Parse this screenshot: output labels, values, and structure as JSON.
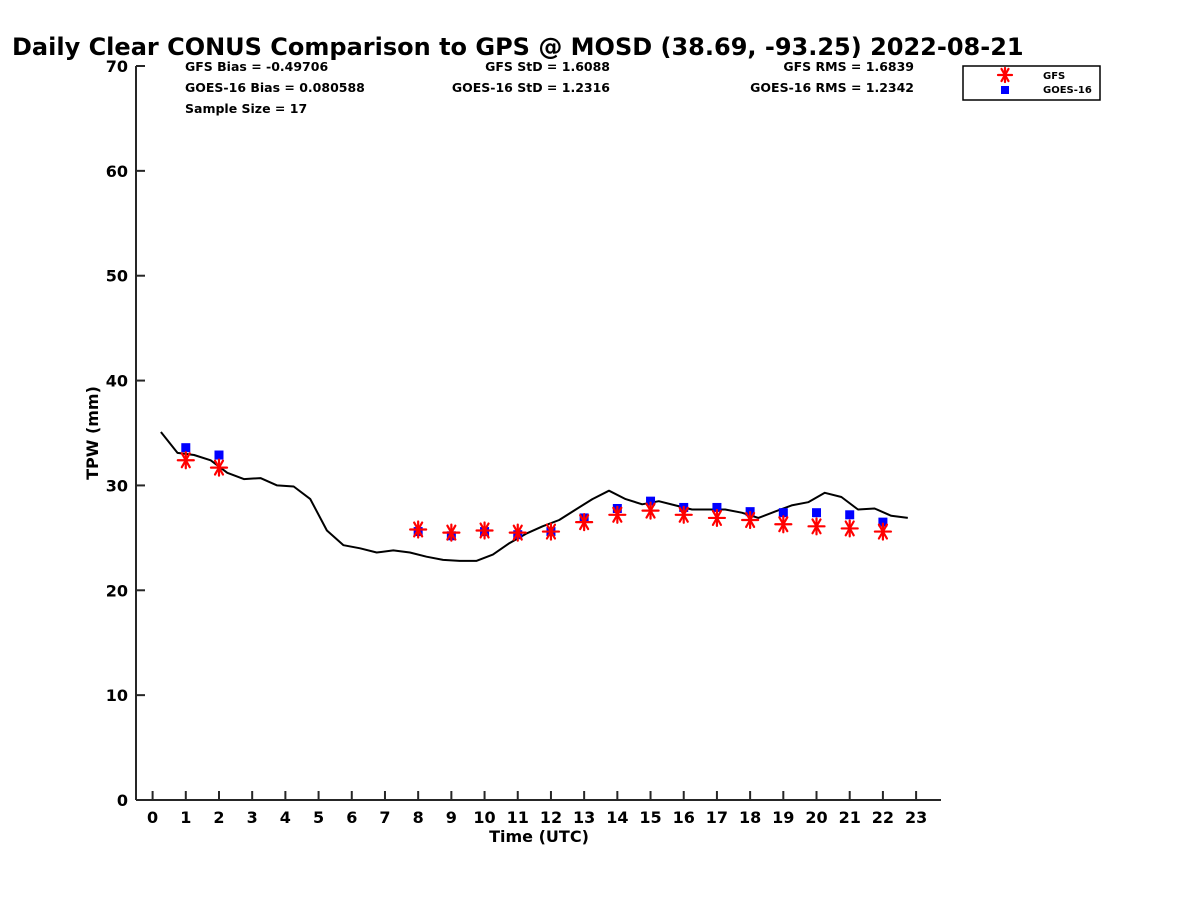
{
  "chart_data": {
    "type": "line+scatter",
    "title": "Daily Clear CONUS Comparison to GPS @ MOSD (38.69, -93.25) 2022-08-21",
    "xlabel": "Time (UTC)",
    "ylabel": "TPW (mm)",
    "xlim": [
      -0.5,
      23.75
    ],
    "ylim": [
      0,
      70
    ],
    "xticks": [
      0,
      1,
      2,
      3,
      4,
      5,
      6,
      7,
      8,
      9,
      10,
      11,
      12,
      13,
      14,
      15,
      16,
      17,
      18,
      19,
      20,
      21,
      22,
      23
    ],
    "yticks": [
      0,
      10,
      20,
      30,
      40,
      50,
      60,
      70
    ],
    "stats": {
      "gfs_bias": "GFS Bias = -0.49706",
      "goes_bias": "GOES-16 Bias = 0.080588",
      "sample_size": "Sample Size = 17",
      "gfs_std": "GFS StD = 1.6088",
      "goes_std": "GOES-16 StD = 1.2316",
      "gfs_rms": "GFS RMS = 1.6839",
      "goes_rms": "GOES-16 RMS = 1.2342"
    },
    "legend": {
      "position": "top-right",
      "entries": [
        "GFS",
        "GOES-16"
      ]
    },
    "colors": {
      "gfs": "#ff0000",
      "goes": "#0000ff",
      "gps": "#000000"
    },
    "series": [
      {
        "name": "GPS",
        "style": "line",
        "x": [
          0.25,
          0.75,
          1.25,
          1.75,
          2.25,
          2.75,
          3.25,
          3.75,
          4.25,
          4.75,
          5.25,
          5.75,
          6.25,
          6.75,
          7.25,
          7.75,
          8.25,
          8.75,
          9.25,
          9.75,
          10.25,
          10.75,
          11.25,
          11.75,
          12.25,
          12.75,
          13.25,
          13.75,
          14.25,
          14.75,
          15.25,
          15.75,
          16.25,
          16.75,
          17.25,
          17.75,
          18.25,
          18.75,
          19.25,
          19.75,
          20.25,
          20.75,
          21.25,
          21.75,
          22.25,
          22.75
        ],
        "y": [
          35.1,
          33.1,
          32.9,
          32.4,
          31.2,
          30.6,
          30.7,
          30.0,
          29.9,
          28.7,
          25.7,
          24.3,
          24.0,
          23.6,
          23.8,
          23.6,
          23.2,
          22.9,
          22.8,
          22.8,
          23.4,
          24.5,
          25.4,
          26.1,
          26.7,
          27.7,
          28.7,
          29.5,
          28.7,
          28.2,
          28.5,
          28.1,
          27.7,
          27.7,
          27.7,
          27.4,
          26.9,
          27.5,
          28.1,
          28.4,
          29.3,
          28.9,
          27.7,
          27.8,
          27.1,
          26.9
        ]
      },
      {
        "name": "GFS",
        "style": "asterisk",
        "x": [
          1,
          2,
          8,
          9,
          10,
          11,
          12,
          13,
          14,
          15,
          16,
          17,
          18,
          19,
          20,
          21,
          22
        ],
        "y": [
          32.4,
          31.7,
          25.8,
          25.5,
          25.7,
          25.5,
          25.6,
          26.5,
          27.2,
          27.6,
          27.2,
          26.9,
          26.7,
          26.3,
          26.1,
          25.9,
          25.6
        ]
      },
      {
        "name": "GOES-16",
        "style": "square",
        "x": [
          1,
          2,
          8,
          9,
          10,
          11,
          12,
          13,
          14,
          15,
          16,
          17,
          18,
          19,
          20,
          21,
          22
        ],
        "y": [
          33.6,
          32.9,
          25.6,
          25.2,
          25.6,
          25.3,
          25.6,
          26.9,
          27.8,
          28.5,
          27.9,
          27.9,
          27.5,
          27.4,
          27.4,
          27.2,
          26.5
        ]
      }
    ]
  }
}
